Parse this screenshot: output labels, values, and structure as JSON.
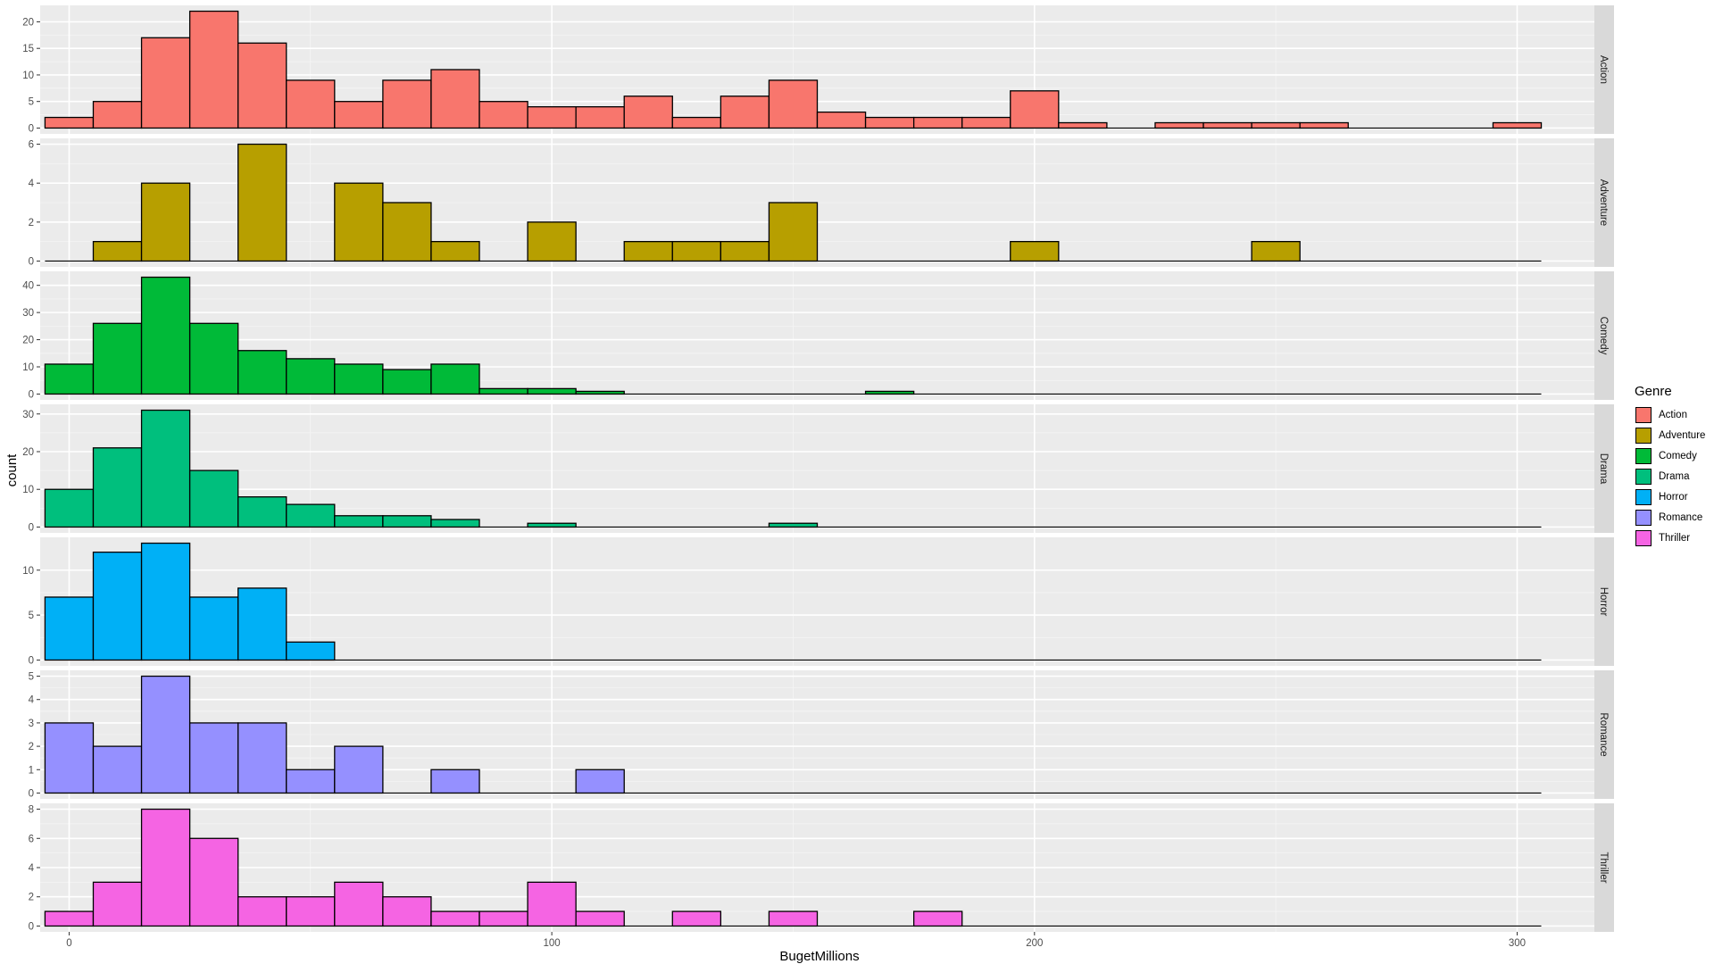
{
  "chart_data": {
    "type": "bar",
    "subtype": "faceted histogram",
    "xlabel": "BugetMillions",
    "ylabel": "count",
    "x_ticks": [
      0,
      100,
      200,
      300
    ],
    "x_range": [
      -5,
      305
    ],
    "bin_width": 10,
    "bin_centers": [
      0,
      10,
      20,
      30,
      40,
      50,
      60,
      70,
      80,
      90,
      100,
      110,
      120,
      130,
      140,
      150,
      160,
      170,
      180,
      190,
      200,
      210,
      220,
      230,
      240,
      250,
      260,
      270,
      280,
      290,
      300
    ],
    "legend_title": "Genre",
    "legend_position": "right",
    "grid": true,
    "facets": [
      {
        "name": "Action",
        "color": "#F8766D",
        "ylim": [
          0,
          22
        ],
        "y_ticks": [
          0,
          5,
          10,
          15,
          20
        ],
        "values": [
          2,
          5,
          17,
          22,
          16,
          9,
          5,
          9,
          11,
          5,
          4,
          4,
          6,
          2,
          6,
          9,
          3,
          2,
          2,
          2,
          7,
          1,
          0,
          1,
          1,
          1,
          1,
          0,
          0,
          0,
          1
        ]
      },
      {
        "name": "Adventure",
        "color": "#B79F00",
        "ylim": [
          0,
          6
        ],
        "y_ticks": [
          0,
          2,
          4,
          6
        ],
        "values": [
          0,
          1,
          4,
          0,
          6,
          0,
          4,
          3,
          1,
          0,
          2,
          0,
          1,
          1,
          1,
          3,
          0,
          0,
          0,
          0,
          1,
          0,
          0,
          0,
          0,
          1,
          0,
          0,
          0,
          0,
          0
        ]
      },
      {
        "name": "Comedy",
        "color": "#00BA38",
        "ylim": [
          0,
          43
        ],
        "y_ticks": [
          0,
          10,
          20,
          30,
          40
        ],
        "values": [
          11,
          26,
          43,
          26,
          16,
          13,
          11,
          9,
          11,
          2,
          2,
          1,
          0,
          0,
          0,
          0,
          0,
          1,
          0,
          0,
          0,
          0,
          0,
          0,
          0,
          0,
          0,
          0,
          0,
          0,
          0
        ]
      },
      {
        "name": "Drama",
        "color": "#00BF7D",
        "ylim": [
          0,
          31
        ],
        "y_ticks": [
          0,
          10,
          20,
          30
        ],
        "values": [
          10,
          21,
          31,
          15,
          8,
          6,
          3,
          3,
          2,
          0,
          1,
          0,
          0,
          0,
          0,
          1,
          0,
          0,
          0,
          0,
          0,
          0,
          0,
          0,
          0,
          0,
          0,
          0,
          0,
          0,
          0
        ]
      },
      {
        "name": "Horror",
        "color": "#00B0F6",
        "ylim": [
          0,
          13
        ],
        "y_ticks": [
          0,
          5,
          10
        ],
        "values": [
          7,
          12,
          13,
          7,
          8,
          2,
          0,
          0,
          0,
          0,
          0,
          0,
          0,
          0,
          0,
          0,
          0,
          0,
          0,
          0,
          0,
          0,
          0,
          0,
          0,
          0,
          0,
          0,
          0,
          0,
          0
        ]
      },
      {
        "name": "Romance",
        "color": "#9590FF",
        "ylim": [
          0,
          5
        ],
        "y_ticks": [
          0,
          1,
          2,
          3,
          4,
          5
        ],
        "values": [
          3,
          2,
          5,
          3,
          3,
          1,
          2,
          0,
          1,
          0,
          0,
          1,
          0,
          0,
          0,
          0,
          0,
          0,
          0,
          0,
          0,
          0,
          0,
          0,
          0,
          0,
          0,
          0,
          0,
          0,
          0
        ]
      },
      {
        "name": "Thriller",
        "color": "#F564E3",
        "ylim": [
          0,
          8
        ],
        "y_ticks": [
          0,
          2,
          4,
          6,
          8
        ],
        "values": [
          1,
          3,
          8,
          6,
          2,
          2,
          3,
          2,
          1,
          1,
          3,
          1,
          0,
          1,
          0,
          1,
          0,
          0,
          1,
          0,
          0,
          0,
          0,
          0,
          0,
          0,
          0,
          0,
          0,
          0,
          0
        ]
      }
    ]
  }
}
